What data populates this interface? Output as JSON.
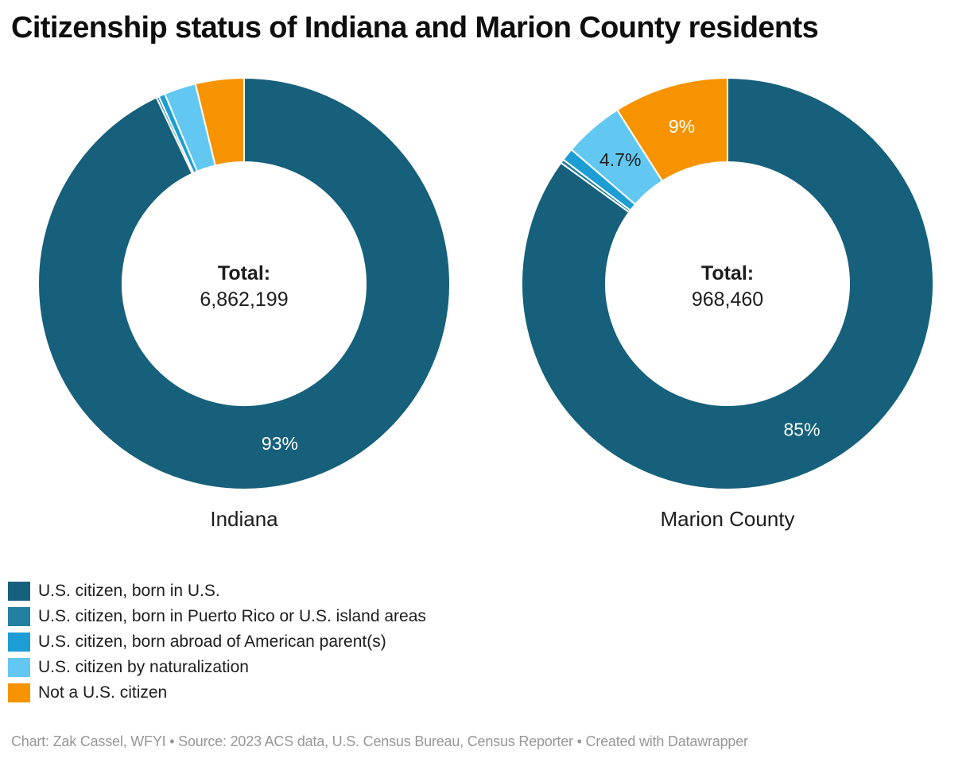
{
  "title": "Citizenship status of Indiana and Marion County residents",
  "footer": "Chart: Zak Cassel, WFYI • Source: 2023 ACS data, U.S. Census Bureau, Census Reporter • Created with Datawrapper",
  "legend": {
    "items": [
      {
        "label": "U.S. citizen, born in U.S.",
        "color": "#16607b"
      },
      {
        "label": "U.S. citizen, born in Puerto Rico or U.S. island areas",
        "color": "#2280a0"
      },
      {
        "label": "U.S. citizen, born abroad of American parent(s)",
        "color": "#1c9ed4"
      },
      {
        "label": "U.S. citizen by naturalization",
        "color": "#62c8f2"
      },
      {
        "label": "Not a U.S. citizen",
        "color": "#f89300"
      }
    ]
  },
  "chart_data": {
    "type": "pie",
    "subtype": "donut",
    "categories": [
      "U.S. citizen, born in U.S.",
      "U.S. citizen, born in Puerto Rico or U.S. island areas",
      "U.S. citizen, born abroad of American parent(s)",
      "U.S. citizen by naturalization",
      "Not a U.S. citizen"
    ],
    "colors": [
      "#16607b",
      "#2280a0",
      "#1c9ed4",
      "#62c8f2",
      "#f89300"
    ],
    "legend_position": "bottom-left",
    "pies": [
      {
        "id": "indiana",
        "name": "Indiana",
        "total_label": "Total:",
        "total": "6,862,199",
        "values": [
          93,
          0.2,
          0.5,
          2.5,
          3.8
        ],
        "slice_labels": [
          {
            "slice": 0,
            "text": "93%",
            "color": "#ffffff"
          }
        ]
      },
      {
        "id": "marion",
        "name": "Marion County",
        "total_label": "Total:",
        "total": "968,460",
        "values": [
          85,
          0.3,
          1.0,
          4.7,
          9
        ],
        "slice_labels": [
          {
            "slice": 0,
            "text": "85%",
            "color": "#ffffff"
          },
          {
            "slice": 3,
            "text": "4.7%",
            "color": "#1d1d1d"
          },
          {
            "slice": 4,
            "text": "9%",
            "color": "#ffffff"
          }
        ]
      }
    ]
  }
}
